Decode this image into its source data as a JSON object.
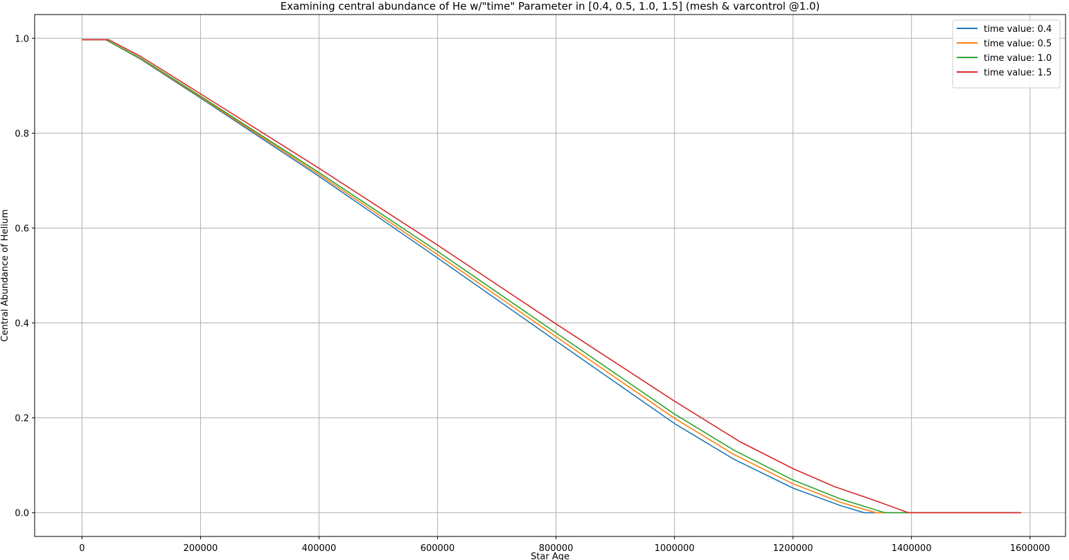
{
  "chart_data": {
    "type": "line",
    "title": "Examining central abundance of He w/\"time\" Parameter in [0.4, 0.5, 1.0, 1.5] (mesh & varcontrol @1.0)",
    "xlabel": "Star Age",
    "ylabel": "Central Abundance of Helium",
    "xlim": [
      -80000,
      1660000
    ],
    "ylim": [
      -0.05,
      1.05
    ],
    "xticks": [
      0,
      200000,
      400000,
      600000,
      800000,
      1000000,
      1200000,
      1400000,
      1600000
    ],
    "yticks": [
      0.0,
      0.2,
      0.4,
      0.6,
      0.8,
      1.0
    ],
    "grid": true,
    "legend_position": "top-right",
    "series": [
      {
        "name": "time value: 0.4",
        "color": "#1f77b4",
        "x": [
          0,
          40000,
          100000,
          200000,
          400000,
          600000,
          800000,
          1000000,
          1100000,
          1200000,
          1280000,
          1320000,
          1400000,
          1585000
        ],
        "y": [
          0.997,
          0.997,
          0.955,
          0.874,
          0.709,
          0.537,
          0.362,
          0.188,
          0.113,
          0.052,
          0.015,
          0.0,
          0.0,
          0.0
        ]
      },
      {
        "name": "time value: 0.5",
        "color": "#ff7f0e",
        "x": [
          0,
          40000,
          100000,
          200000,
          400000,
          600000,
          800000,
          1000000,
          1100000,
          1200000,
          1280000,
          1340000,
          1400000,
          1585000
        ],
        "y": [
          0.997,
          0.997,
          0.956,
          0.876,
          0.713,
          0.544,
          0.371,
          0.199,
          0.123,
          0.061,
          0.022,
          0.0,
          0.0,
          0.0
        ]
      },
      {
        "name": "time value: 1.0",
        "color": "#2ca02c",
        "x": [
          0,
          40000,
          100000,
          200000,
          400000,
          600000,
          800000,
          1000000,
          1100000,
          1200000,
          1280000,
          1355000,
          1400000,
          1585000
        ],
        "y": [
          0.997,
          0.997,
          0.957,
          0.878,
          0.717,
          0.551,
          0.379,
          0.208,
          0.132,
          0.069,
          0.029,
          0.0,
          0.0,
          0.0
        ]
      },
      {
        "name": "time value: 1.5",
        "color": "#d62728",
        "x": [
          0,
          45000,
          100000,
          200000,
          400000,
          600000,
          800000,
          1000000,
          1110000,
          1200000,
          1270000,
          1340000,
          1395000,
          1585000
        ],
        "y": [
          0.997,
          0.997,
          0.961,
          0.883,
          0.726,
          0.564,
          0.398,
          0.235,
          0.15,
          0.093,
          0.055,
          0.025,
          0.0,
          0.0
        ]
      }
    ]
  }
}
